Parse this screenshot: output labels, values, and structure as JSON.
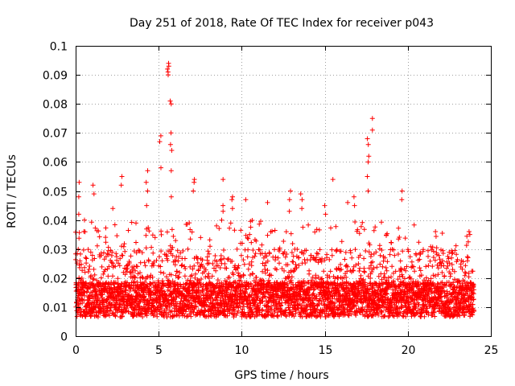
{
  "chart_data": {
    "type": "scatter",
    "title": "Day 251 of 2018, Rate Of TEC Index for receiver p043",
    "xlabel": "GPS time / hours",
    "ylabel": "ROTI / TECUs",
    "xlim": [
      0,
      25
    ],
    "ylim": [
      0,
      0.1
    ],
    "xticks": [
      0,
      5,
      10,
      15,
      20,
      25
    ],
    "xtick_labels": [
      "0",
      "5",
      "10",
      "15",
      "20",
      "25"
    ],
    "yticks": [
      0,
      0.01,
      0.02,
      0.03,
      0.04,
      0.05,
      0.06,
      0.07,
      0.08,
      0.09,
      0.1
    ],
    "ytick_labels": [
      "0",
      "0.01",
      "0.02",
      "0.03",
      "0.04",
      "0.05",
      "0.06",
      "0.07",
      "0.08",
      "0.09",
      "0.1"
    ],
    "grid": true,
    "marker": "+",
    "color": "#ff0000",
    "series": [
      {
        "name": "ROTI",
        "x_range": [
          0,
          24
        ],
        "baseline_band": [
          0.004,
          0.03
        ],
        "typical_center": 0.012,
        "peaks": [
          {
            "x": 0.2,
            "values": [
              0.048,
              0.053,
              0.042
            ]
          },
          {
            "x": 1.1,
            "values": [
              0.049,
              0.052
            ]
          },
          {
            "x": 2.2,
            "values": [
              0.044
            ]
          },
          {
            "x": 2.8,
            "values": [
              0.052,
              0.055
            ]
          },
          {
            "x": 4.3,
            "values": [
              0.045,
              0.05,
              0.053,
              0.057
            ]
          },
          {
            "x": 5.1,
            "values": [
              0.058,
              0.067,
              0.069
            ]
          },
          {
            "x": 5.55,
            "values": [
              0.09,
              0.091,
              0.092,
              0.093,
              0.094
            ]
          },
          {
            "x": 5.75,
            "values": [
              0.048,
              0.057,
              0.064,
              0.066,
              0.07,
              0.08,
              0.081
            ]
          },
          {
            "x": 7.1,
            "values": [
              0.05,
              0.053,
              0.054
            ]
          },
          {
            "x": 8.9,
            "values": [
              0.043,
              0.045,
              0.054
            ]
          },
          {
            "x": 9.4,
            "values": [
              0.044,
              0.047,
              0.048
            ]
          },
          {
            "x": 10.2,
            "values": [
              0.047
            ]
          },
          {
            "x": 11.5,
            "values": [
              0.046
            ]
          },
          {
            "x": 12.9,
            "values": [
              0.043,
              0.047,
              0.05
            ]
          },
          {
            "x": 13.6,
            "values": [
              0.044,
              0.047,
              0.049
            ]
          },
          {
            "x": 15.0,
            "values": [
              0.042,
              0.045
            ]
          },
          {
            "x": 15.5,
            "values": [
              0.054
            ]
          },
          {
            "x": 16.4,
            "values": [
              0.046
            ]
          },
          {
            "x": 16.8,
            "values": [
              0.045,
              0.048
            ]
          },
          {
            "x": 17.6,
            "values": [
              0.05,
              0.055,
              0.06,
              0.062,
              0.066,
              0.068
            ]
          },
          {
            "x": 17.9,
            "values": [
              0.071,
              0.075
            ]
          },
          {
            "x": 19.6,
            "values": [
              0.047,
              0.05
            ]
          },
          {
            "x": 21.7,
            "values": [
              0.036
            ]
          },
          {
            "x": 23.7,
            "values": [
              0.035,
              0.036
            ]
          }
        ]
      }
    ]
  }
}
